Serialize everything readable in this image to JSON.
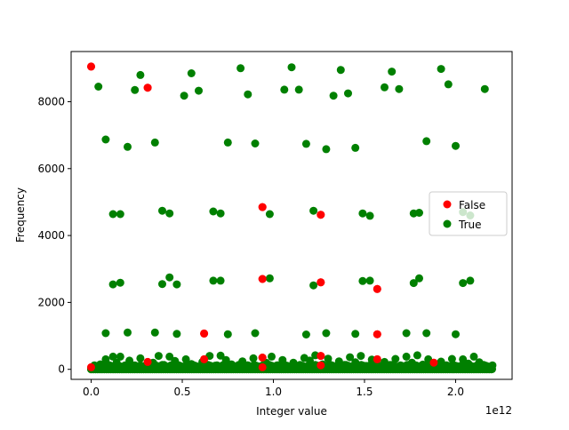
{
  "chart_data": {
    "type": "scatter",
    "title": "",
    "xlabel": "Integer value",
    "ylabel": "Frequency",
    "x_offset_label": "1e12",
    "xlim": [
      -0.11,
      2.31
    ],
    "ylim": [
      -300,
      9500
    ],
    "xticks": [
      0.0,
      0.5,
      1.0,
      1.5,
      2.0
    ],
    "xtick_labels": [
      "0.0",
      "0.5",
      "1.0",
      "1.5",
      "2.0"
    ],
    "yticks": [
      0,
      2000,
      4000,
      6000,
      8000
    ],
    "ytick_labels": [
      "0",
      "2000",
      "4000",
      "6000",
      "8000"
    ],
    "grid": false,
    "legend_position": "right",
    "series": [
      {
        "name": "False",
        "color": "#ff0000",
        "points": [
          [
            0.0,
            9050
          ],
          [
            0.31,
            8420
          ],
          [
            0.31,
            220
          ],
          [
            0.62,
            1070
          ],
          [
            0.62,
            300
          ],
          [
            0.94,
            4850
          ],
          [
            0.94,
            2700
          ],
          [
            0.94,
            350
          ],
          [
            1.26,
            4620
          ],
          [
            1.26,
            2600
          ],
          [
            1.26,
            400
          ],
          [
            1.57,
            2400
          ],
          [
            1.57,
            1050
          ],
          [
            1.57,
            300
          ],
          [
            1.88,
            200
          ],
          [
            0.0,
            60
          ],
          [
            1.26,
            120
          ],
          [
            0.94,
            60
          ]
        ]
      },
      {
        "name": "True",
        "color": "#008000",
        "points": [
          [
            0.04,
            8450
          ],
          [
            0.27,
            8800
          ],
          [
            0.24,
            8350
          ],
          [
            0.51,
            8180
          ],
          [
            0.55,
            8850
          ],
          [
            0.59,
            8330
          ],
          [
            0.82,
            9000
          ],
          [
            0.86,
            8220
          ],
          [
            1.06,
            8360
          ],
          [
            1.1,
            9030
          ],
          [
            1.14,
            8360
          ],
          [
            1.33,
            8180
          ],
          [
            1.37,
            8950
          ],
          [
            1.41,
            8250
          ],
          [
            1.61,
            8430
          ],
          [
            1.65,
            8900
          ],
          [
            1.69,
            8380
          ],
          [
            1.92,
            8980
          ],
          [
            1.96,
            8520
          ],
          [
            2.16,
            8380
          ],
          [
            0.08,
            6870
          ],
          [
            0.2,
            6650
          ],
          [
            0.35,
            6780
          ],
          [
            0.75,
            6780
          ],
          [
            0.9,
            6750
          ],
          [
            1.18,
            6740
          ],
          [
            1.29,
            6580
          ],
          [
            1.45,
            6620
          ],
          [
            1.84,
            6820
          ],
          [
            2.0,
            6680
          ],
          [
            0.12,
            4640
          ],
          [
            0.16,
            4640
          ],
          [
            0.39,
            4740
          ],
          [
            0.43,
            4660
          ],
          [
            0.67,
            4720
          ],
          [
            0.71,
            4660
          ],
          [
            0.98,
            4640
          ],
          [
            1.22,
            4740
          ],
          [
            1.49,
            4660
          ],
          [
            1.53,
            4590
          ],
          [
            1.77,
            4660
          ],
          [
            1.8,
            4680
          ],
          [
            2.04,
            4700
          ],
          [
            2.08,
            4600
          ],
          [
            0.12,
            2540
          ],
          [
            0.16,
            2590
          ],
          [
            0.39,
            2550
          ],
          [
            0.43,
            2750
          ],
          [
            0.47,
            2540
          ],
          [
            0.67,
            2650
          ],
          [
            0.71,
            2650
          ],
          [
            0.98,
            2720
          ],
          [
            1.22,
            2510
          ],
          [
            1.49,
            2640
          ],
          [
            1.53,
            2650
          ],
          [
            1.77,
            2580
          ],
          [
            1.8,
            2720
          ],
          [
            2.04,
            2580
          ],
          [
            2.08,
            2650
          ],
          [
            0.08,
            1080
          ],
          [
            0.2,
            1100
          ],
          [
            0.35,
            1100
          ],
          [
            0.47,
            1060
          ],
          [
            0.75,
            1050
          ],
          [
            0.9,
            1080
          ],
          [
            1.18,
            1040
          ],
          [
            1.29,
            1080
          ],
          [
            1.45,
            1060
          ],
          [
            1.73,
            1080
          ],
          [
            1.84,
            1080
          ],
          [
            2.0,
            1050
          ],
          [
            0.02,
            60
          ],
          [
            0.05,
            150
          ],
          [
            0.08,
            300
          ],
          [
            0.1,
            90
          ],
          [
            0.12,
            380
          ],
          [
            0.14,
            200
          ],
          [
            0.16,
            380
          ],
          [
            0.18,
            70
          ],
          [
            0.21,
            260
          ],
          [
            0.24,
            120
          ],
          [
            0.27,
            330
          ],
          [
            0.3,
            80
          ],
          [
            0.34,
            200
          ],
          [
            0.37,
            400
          ],
          [
            0.4,
            130
          ],
          [
            0.43,
            380
          ],
          [
            0.46,
            250
          ],
          [
            0.49,
            90
          ],
          [
            0.52,
            300
          ],
          [
            0.55,
            160
          ],
          [
            0.58,
            60
          ],
          [
            0.61,
            220
          ],
          [
            0.65,
            400
          ],
          [
            0.68,
            110
          ],
          [
            0.71,
            410
          ],
          [
            0.74,
            280
          ],
          [
            0.77,
            150
          ],
          [
            0.8,
            60
          ],
          [
            0.83,
            240
          ],
          [
            0.86,
            120
          ],
          [
            0.89,
            330
          ],
          [
            0.92,
            80
          ],
          [
            0.96,
            200
          ],
          [
            0.99,
            380
          ],
          [
            1.02,
            120
          ],
          [
            1.05,
            280
          ],
          [
            1.08,
            60
          ],
          [
            1.11,
            200
          ],
          [
            1.14,
            110
          ],
          [
            1.17,
            340
          ],
          [
            1.2,
            260
          ],
          [
            1.23,
            420
          ],
          [
            1.27,
            150
          ],
          [
            1.3,
            320
          ],
          [
            1.33,
            80
          ],
          [
            1.36,
            240
          ],
          [
            1.39,
            130
          ],
          [
            1.42,
            360
          ],
          [
            1.45,
            210
          ],
          [
            1.48,
            400
          ],
          [
            1.51,
            100
          ],
          [
            1.54,
            290
          ],
          [
            1.58,
            70
          ],
          [
            1.61,
            220
          ],
          [
            1.64,
            130
          ],
          [
            1.67,
            310
          ],
          [
            1.7,
            80
          ],
          [
            1.73,
            380
          ],
          [
            1.76,
            200
          ],
          [
            1.79,
            420
          ],
          [
            1.82,
            140
          ],
          [
            1.85,
            300
          ],
          [
            1.89,
            70
          ],
          [
            1.92,
            230
          ],
          [
            1.95,
            120
          ],
          [
            1.98,
            310
          ],
          [
            2.01,
            90
          ],
          [
            2.04,
            300
          ],
          [
            2.07,
            170
          ],
          [
            2.1,
            380
          ],
          [
            2.13,
            210
          ],
          [
            2.16,
            100
          ],
          [
            2.19,
            40
          ],
          [
            0.0,
            5
          ],
          [
            2.2,
            5
          ]
        ]
      }
    ]
  }
}
